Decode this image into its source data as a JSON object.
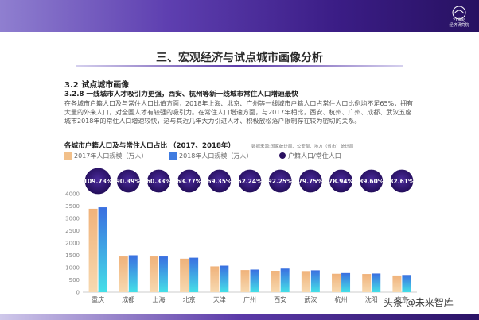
{
  "header": {
    "logo_line1": "21世纪",
    "logo_line2": "经济研究院"
  },
  "section_title": "三、宏观经济与试点城市画像分析",
  "subsection": "3.2 试点城市画像",
  "heading": "3.2.8 一线城市人才吸引力更强，西安、杭州等新一线城市常住人口增速最快",
  "paragraph": "在各城市户籍人口及与常住人口比值方面，2018年上海、北京、广州等一线城市户籍人口占常住人口比例均不足65%，拥有大量的外来人口，对全国人才有较强的吸引力。在常住人口增速方面，与2017年相比，西安、杭州、广州、成都、武汉五座城市2018年的常住人口增速较快，这与其近几年大力引进人才、积极放松落户限制存在较为密切的关系。",
  "chart_heading": "各城市户籍人口及与常住人口占比 （2017、2018年）",
  "chart_source": "数据来源:国家统计局、公安部、地方（省市）统计局",
  "watermark": "头条 @未来智库",
  "colors": {
    "series_2017": "#f2c08a",
    "series_2018": "#3f7be0",
    "ratio_circle": "#2a1060"
  },
  "chart_data": {
    "type": "bar",
    "title": "各城市户籍人口及与常住人口占比 （2017、2018年）",
    "categories": [
      "重庆",
      "成都",
      "上海",
      "北京",
      "天津",
      "广州",
      "西安",
      "武汉",
      "杭州",
      "沈阳",
      "南京"
    ],
    "series": [
      {
        "name": "2017年人口规模（万人）",
        "values": [
          3390,
          1450,
          1450,
          1360,
          1050,
          900,
          870,
          860,
          750,
          740,
          680
        ]
      },
      {
        "name": "2018年人口规模（万人）",
        "values": [
          3450,
          1500,
          1450,
          1400,
          1080,
          920,
          960,
          890,
          780,
          760,
          700
        ]
      }
    ],
    "ratio_series": {
      "name": "户籍人口/常住人口",
      "labels": [
        "109.73%",
        "90.39%",
        "60.33%",
        "63.77%",
        "69.35%",
        "62.24%",
        "92.25%",
        "79.75%",
        "78.94%",
        "89.60%",
        "82.61%"
      ]
    },
    "ylim": [
      0,
      4000
    ],
    "yticks": [
      "0",
      "500",
      "1000",
      "1500",
      "2000",
      "2500",
      "3000",
      "3500",
      "4000"
    ],
    "grid": false,
    "legend": "top"
  }
}
